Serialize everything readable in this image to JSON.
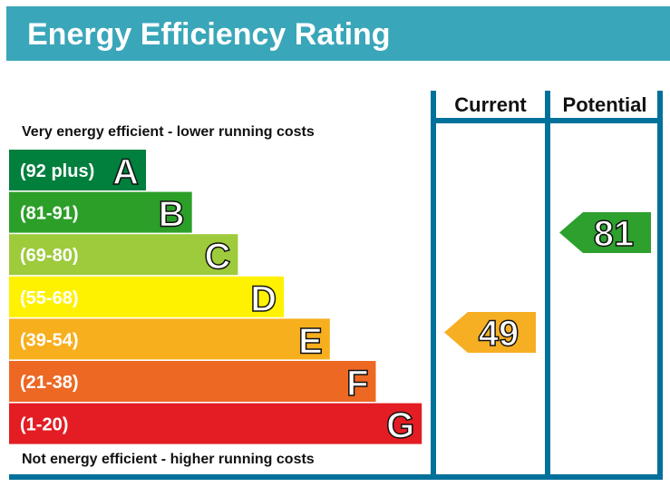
{
  "title": "Energy Efficiency Rating",
  "chart_data": {
    "type": "bar",
    "title": "Energy Efficiency Rating",
    "top_note": "Very energy efficient - lower running costs",
    "bottom_note": "Not energy efficient - higher running costs",
    "columns": [
      "Current",
      "Potential"
    ],
    "bands": [
      {
        "range": "(92 plus)",
        "letter": "A",
        "color": "#008054"
      },
      {
        "range": "(81-91)",
        "letter": "B",
        "color": "#19b459"
      },
      {
        "range": "(69-80)",
        "letter": "C",
        "color": "#8dce46"
      },
      {
        "range": "(55-68)",
        "letter": "D",
        "color": "#ffd500"
      },
      {
        "range": "(39-54)",
        "letter": "E",
        "color": "#fcaa65"
      },
      {
        "range": "(21-38)",
        "letter": "F",
        "color": "#ef8023"
      },
      {
        "range": "(1-20)",
        "letter": "G",
        "color": "#e9153b"
      }
    ],
    "current": {
      "value": "49",
      "band": "E",
      "color": "#f6ae22"
    },
    "potential": {
      "value": "81",
      "band": "B",
      "color": "#2da02d"
    },
    "colors": {
      "header": "#3aa6b9",
      "frame": "#00719a"
    }
  }
}
